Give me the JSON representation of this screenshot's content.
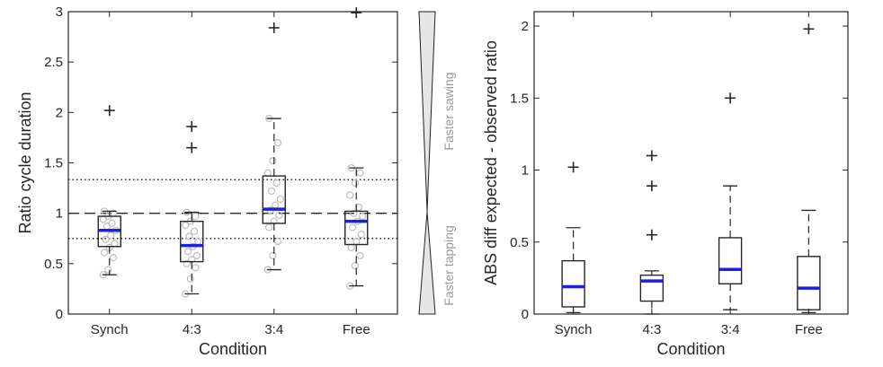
{
  "chart_data": [
    {
      "type": "box",
      "xlabel": "Condition",
      "ylabel": "Ratio cycle duration",
      "categories": [
        "Synch",
        "4:3",
        "3:4",
        "Free"
      ],
      "ylim": [
        0,
        3
      ],
      "yticks": [
        0,
        0.5,
        1,
        1.5,
        2,
        2.5,
        3
      ],
      "ytick_labels": [
        "0",
        "0.5",
        "1",
        "1.5",
        "2",
        "2.5",
        "3"
      ],
      "boxes": [
        {
          "category": "Synch",
          "q1": 0.67,
          "median": 0.83,
          "q3": 0.97,
          "whisker_low": 0.39,
          "whisker_high": 1.02,
          "outliers": [
            2.02
          ]
        },
        {
          "category": "4:3",
          "q1": 0.52,
          "median": 0.68,
          "q3": 0.92,
          "whisker_low": 0.2,
          "whisker_high": 1.01,
          "outliers": [
            1.86,
            1.65
          ]
        },
        {
          "category": "3:4",
          "q1": 0.9,
          "median": 1.04,
          "q3": 1.37,
          "whisker_low": 0.44,
          "whisker_high": 1.94,
          "outliers": [
            2.84
          ]
        },
        {
          "category": "Free",
          "q1": 0.69,
          "median": 0.92,
          "q3": 1.02,
          "whisker_low": 0.28,
          "whisker_high": 1.45,
          "outliers": [
            2.99
          ]
        }
      ],
      "points": [
        [
          0.39,
          0.44,
          0.56,
          0.61,
          0.66,
          0.7,
          0.74,
          0.78,
          0.83,
          0.87,
          0.9,
          0.94,
          0.97,
          1.0,
          1.02
        ],
        [
          0.2,
          0.35,
          0.46,
          0.5,
          0.54,
          0.58,
          0.62,
          0.67,
          0.72,
          0.77,
          0.82,
          0.88,
          0.92,
          0.97,
          1.01
        ],
        [
          0.44,
          0.58,
          0.72,
          0.86,
          0.92,
          0.98,
          1.03,
          1.08,
          1.14,
          1.22,
          1.3,
          1.4,
          1.52,
          1.7,
          1.94
        ],
        [
          0.28,
          0.48,
          0.58,
          0.66,
          0.72,
          0.79,
          0.86,
          0.92,
          0.97,
          1.0,
          1.06,
          1.18,
          1.3,
          1.4,
          1.45
        ]
      ],
      "reference_lines": [
        {
          "y": 1.0,
          "style": "dashed"
        },
        {
          "y": 1.333,
          "style": "dotted"
        },
        {
          "y": 0.75,
          "style": "dotted"
        }
      ],
      "colors": {
        "median": "#1f1fe0",
        "box": "#262626",
        "points": "#bdbdbd"
      }
    },
    {
      "type": "box",
      "xlabel": "Condition",
      "ylabel": "ABS diff expected - observed ratio",
      "categories": [
        "Synch",
        "4:3",
        "3:4",
        "Free"
      ],
      "ylim": [
        0,
        2.1
      ],
      "yticks": [
        0,
        0.5,
        1,
        1.5,
        2
      ],
      "ytick_labels": [
        "0",
        "0.5",
        "1",
        "1.5",
        "2"
      ],
      "boxes": [
        {
          "category": "Synch",
          "q1": 0.05,
          "median": 0.19,
          "q3": 0.37,
          "whisker_low": 0.01,
          "whisker_high": 0.6,
          "outliers": [
            1.02
          ]
        },
        {
          "category": "4:3",
          "q1": 0.09,
          "median": 0.23,
          "q3": 0.27,
          "whisker_low": 0.0,
          "whisker_high": 0.3,
          "outliers": [
            1.1,
            0.89,
            0.55
          ]
        },
        {
          "category": "3:4",
          "q1": 0.21,
          "median": 0.31,
          "q3": 0.53,
          "whisker_low": 0.03,
          "whisker_high": 0.89,
          "outliers": [
            1.5
          ]
        },
        {
          "category": "Free",
          "q1": 0.03,
          "median": 0.18,
          "q3": 0.4,
          "whisker_low": 0.01,
          "whisker_high": 0.72,
          "outliers": [
            1.98
          ]
        }
      ],
      "colors": {
        "median": "#1f1fe0",
        "box": "#262626"
      }
    }
  ],
  "side_scale": {
    "upper_label": "Faster sawing",
    "lower_label": "Faster tapping"
  }
}
